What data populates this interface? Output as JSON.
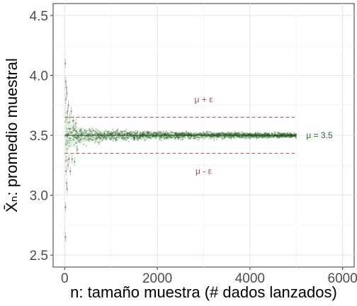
{
  "chart_data": {
    "type": "scatter",
    "title": "",
    "xlabel": "n: tamaño muestra (# dados lanzados)",
    "ylabel": "X̄ₙ: promedio muestral",
    "xlim": [
      -250,
      6250
    ],
    "ylim": [
      2.4,
      4.6
    ],
    "x_ticks": [
      0,
      2000,
      4000,
      6000
    ],
    "x_tick_labels": [
      "0",
      "2000",
      "4000",
      "6000"
    ],
    "y_ticks": [
      2.5,
      3.0,
      3.5,
      4.0,
      4.5
    ],
    "y_tick_labels": [
      "2.5",
      "3.0",
      "3.5",
      "4.0",
      "4.5"
    ],
    "grid": true,
    "legend": "none",
    "n_max": 5000,
    "mu": 3.5,
    "epsilon": 0.15,
    "reference_lines": [
      {
        "name": "mean",
        "y": 3.5,
        "style": "solid",
        "color": "#1b3d1b"
      },
      {
        "name": "upper",
        "y": 3.65,
        "style": "dashed",
        "color": "#a0524f"
      },
      {
        "name": "lower",
        "y": 3.35,
        "style": "dashed",
        "color": "#a0524f"
      }
    ],
    "annotations": [
      {
        "name": "upper-label",
        "text": "μ + ε",
        "x": 3000,
        "y": 3.8,
        "color": "#a0524f"
      },
      {
        "name": "lower-label",
        "text": "μ - ε",
        "x": 3000,
        "y": 3.2,
        "color": "#a0524f"
      },
      {
        "name": "mean-label",
        "text": "μ = 3.5",
        "x": 5500,
        "y": 3.5,
        "color": "#2e6b2e"
      }
    ],
    "series_color": "#2e6b2e",
    "band_color": "#cfe0cf",
    "early_points": [
      [
        12,
        4.1
      ],
      [
        15,
        2.65
      ],
      [
        18,
        2.9
      ],
      [
        22,
        3.95
      ],
      [
        25,
        3.8
      ],
      [
        30,
        3.2
      ],
      [
        35,
        3.9
      ],
      [
        40,
        3.1
      ],
      [
        48,
        3.85
      ],
      [
        55,
        3.05
      ],
      [
        62,
        3.7
      ],
      [
        70,
        3.25
      ],
      [
        80,
        3.75
      ],
      [
        90,
        3.3
      ],
      [
        105,
        3.65
      ],
      [
        120,
        3.2
      ],
      [
        140,
        3.7
      ],
      [
        160,
        3.3
      ],
      [
        185,
        3.62
      ],
      [
        210,
        3.28
      ],
      [
        240,
        3.6
      ],
      [
        270,
        3.38
      ]
    ]
  }
}
